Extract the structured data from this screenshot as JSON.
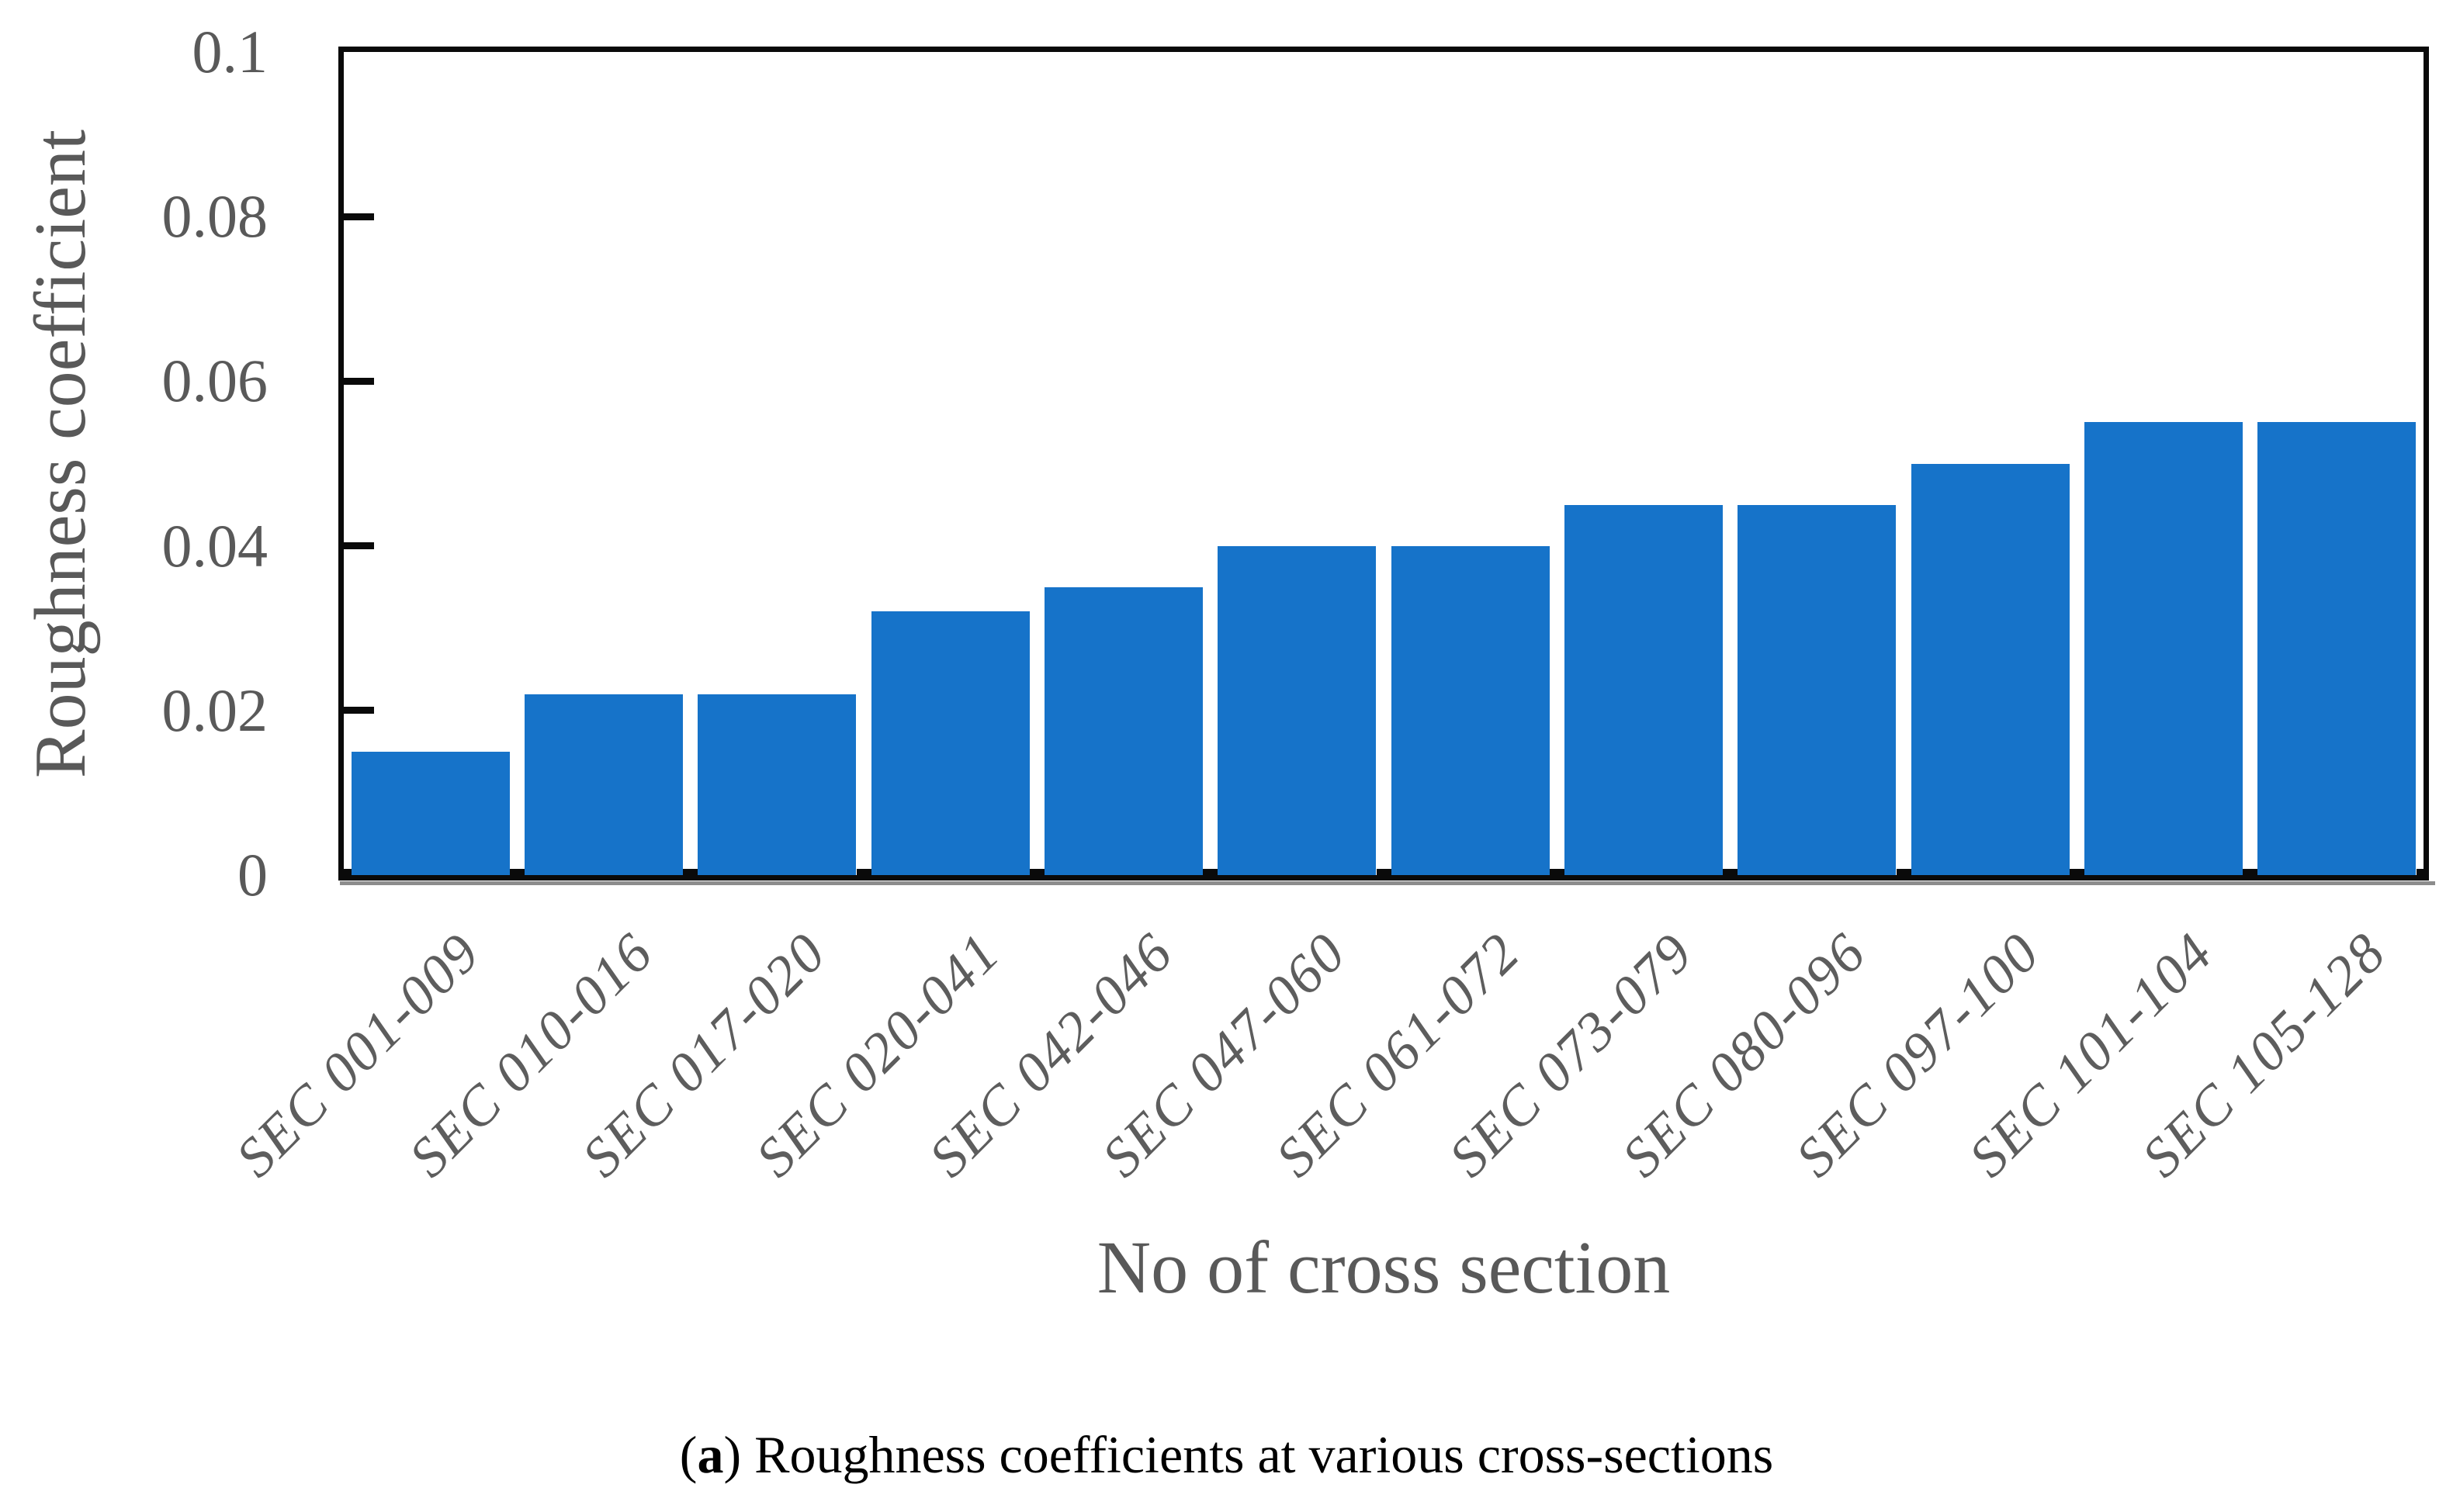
{
  "chart_data": {
    "type": "bar",
    "title": "",
    "xlabel": "No of cross section",
    "ylabel": "Roughness coefficient",
    "categories": [
      "SEC 001-009",
      "SEC 010-016",
      "SEC 017-020",
      "SEC 020-041",
      "SEC 042-046",
      "SEC 047-060",
      "SEC 061-072",
      "SEC 073-079",
      "SEC 080-096",
      "SEC 097-100",
      "SEC 101-104",
      "SEC 105-128"
    ],
    "values": [
      0.015,
      0.022,
      0.022,
      0.032,
      0.035,
      0.04,
      0.04,
      0.045,
      0.045,
      0.05,
      0.055,
      0.055
    ],
    "ylim": [
      0,
      0.1
    ],
    "ytick_values": [
      0.1,
      0.08,
      0.06,
      0.04,
      0.02,
      0
    ],
    "ytick_labels": [
      "0.1",
      "0.08",
      "0.06",
      "0.04",
      "0.02",
      "0"
    ],
    "grid": false,
    "legend_position": "none",
    "bar_color": "#1673c9",
    "axis_text_color": "#595959",
    "frame_color": "#0a0a0a",
    "shadow_color": "#8c8c8c"
  },
  "figure": {
    "caption_prefix": "(",
    "caption_index": "a",
    "caption_suffix": ") ",
    "caption_text": "Roughness coefficients at various cross-sections"
  }
}
